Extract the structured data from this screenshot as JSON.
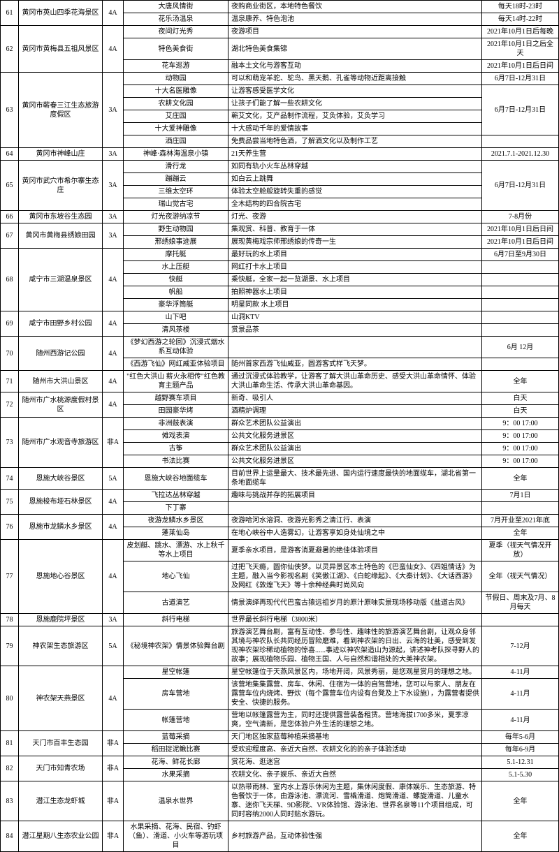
{
  "rows": [
    {
      "idx": "61",
      "name": "黄冈市英山四季花海景区",
      "grade": "4A",
      "items": [
        {
          "i": "大唐风情街",
          "d": "夜购商业街区，本地特色餐饮",
          "t": "每天18时-23时"
        },
        {
          "i": "花乐汤温泉",
          "d": "温泉康养、特色泡池",
          "t": "每天14时-22时"
        }
      ]
    },
    {
      "idx": "62",
      "name": "黄冈市黄梅县五祖风景区",
      "grade": "4A",
      "items": [
        {
          "i": "夜间灯光秀",
          "d": "夜游项目",
          "t": "2021年10月1日后每晚"
        },
        {
          "i": "特色美食街",
          "d": "湖北特色美食集锦",
          "t": "2021年10月1日之后全天"
        },
        {
          "i": "花车巡游",
          "d": "融本土文化与游客互动",
          "t": "2021年10月1日后日间"
        }
      ]
    },
    {
      "idx": "63",
      "name": "黄冈市蕲春三江生态旅游度假区",
      "grade": "3A",
      "items": [
        {
          "i": "动物园",
          "d": "可以和萌宠羊驼、鸵鸟、黑天鹅、孔雀等动物近距离接触",
          "t": "6月7日-12月31日"
        },
        {
          "i": "十大名医雕像",
          "d": "让游客感受医学文化",
          "t": "6月7日-12月31日",
          "merge": 4
        },
        {
          "i": "农耕文化园",
          "d": "让孩子们能了解一些农耕文化"
        },
        {
          "i": "艾庄园",
          "d": "蕲艾文化，艾产品制作流程，艾灸体验，艾灸学习"
        },
        {
          "i": "十大爱神雕像",
          "d": "十大感动千年的爱情故事"
        },
        {
          "i": "酒庄园",
          "d": "免费品尝当地特色酒，了解酒文化以及制作工艺",
          "t": ""
        }
      ]
    },
    {
      "idx": "64",
      "name": "黄冈市神峰山庄",
      "grade": "3A",
      "items": [
        {
          "i": "神峰·森林海温泉小镇",
          "d": "21天养生营",
          "t": "2021.7.1-2021.12.30"
        }
      ]
    },
    {
      "idx": "65",
      "name": "黄冈市武穴市希尔寨生态庄",
      "grade": "3A",
      "items": [
        {
          "i": "滑行龙",
          "d": "如同有轨小火车丛林穿越",
          "t": "6月7日-12月31日",
          "merge": 4
        },
        {
          "i": "蹦蹦云",
          "d": "如白云上跳舞"
        },
        {
          "i": "三维太空环",
          "d": "体验太空舱般旋转失重的感觉"
        },
        {
          "i": "瑞山觉古宅",
          "d": "全木结构的四合院古宅"
        }
      ]
    },
    {
      "idx": "66",
      "name": "黄冈市东坡谷生态园",
      "grade": "3A",
      "items": [
        {
          "i": "灯光夜游纳凉节",
          "d": "灯光、夜游",
          "t": "7-8月份"
        }
      ]
    },
    {
      "idx": "67",
      "name": "黄冈市黄梅县绣娘田园",
      "grade": "3A",
      "items": [
        {
          "i": "野生动物园",
          "d": "集观赏、科普、教育于一体",
          "t": "2021年10月1日后日间"
        },
        {
          "i": "邢绣娘事迹展",
          "d": "展现黄梅戏宗师邢绣娘的传奇一生",
          "t": "2021年10月1日后日间"
        }
      ]
    },
    {
      "idx": "68",
      "name": "咸宁市三湖温泉景区",
      "grade": "4A",
      "items": [
        {
          "i": "摩托艇",
          "d": "最好玩的水上项目",
          "t": "6月7日至9月30日"
        },
        {
          "i": "水上压艇",
          "d": "网红打卡水上项目",
          "t": ""
        },
        {
          "i": "快艇",
          "d": "乘快艇，全家一起一览湖景、水上项目",
          "t": ""
        },
        {
          "i": "帆船",
          "d": "拍照神器水上项目",
          "t": ""
        },
        {
          "i": "豪华浮筒艇",
          "d": "明星同款 水上项目",
          "t": ""
        }
      ]
    },
    {
      "idx": "69",
      "name": "咸宁市田野乡村公园",
      "grade": "4A",
      "items": [
        {
          "i": "山下吧",
          "d": "山洞KTV",
          "t": ""
        },
        {
          "i": "清风茶楼",
          "d": "赏景品茶",
          "t": ""
        }
      ]
    },
    {
      "idx": "70",
      "name": "随州西游记公园",
      "grade": "4A",
      "items": [
        {
          "i": "《梦幻西游之轮回》沉浸式烟水系互动体验",
          "d": "",
          "t": "6月 12月"
        },
        {
          "i": "《西游飞仙》网红威亚体验项目",
          "d": "随州首家西游飞仙威亚，圆游客式样飞天梦。",
          "t": ""
        }
      ]
    },
    {
      "idx": "71",
      "name": "随州市大洪山景区",
      "grade": "4A",
      "items": [
        {
          "i": "\"红色大洪山 薪火永相传\"红色教育主题产品",
          "d": "通过沉浸式体验教学，让游客了解大洪山革命历史、感受大洪山革命情怀、体验大洪山革命生活、传承大洪山革命基因。",
          "t": "全年"
        }
      ]
    },
    {
      "idx": "72",
      "name": "随州市广水桃源度假村景区",
      "grade": "4A",
      "items": [
        {
          "i": "越野赛车项目",
          "d": "新奇、吸引人",
          "t": "白天"
        },
        {
          "i": "田园豪华烤",
          "d": "酒精炉调理",
          "t": "白天"
        }
      ]
    },
    {
      "idx": "73",
      "name": "随州市广水观音寺旅游区",
      "grade": "非A",
      "items": [
        {
          "i": "非洲鼓表演",
          "d": "群众艺术团队公益演出",
          "t": "9：00 17:00"
        },
        {
          "i": "傩戏表演",
          "d": "公共文化服务进景区",
          "t": "9：00 17:00"
        },
        {
          "i": "古筝",
          "d": "群众艺术团队公益演出",
          "t": "9：00 17:00"
        },
        {
          "i": "书法比赛",
          "d": "公共文化服务进景区",
          "t": "9：00 17:00"
        }
      ]
    },
    {
      "idx": "74",
      "name": "恩施大峡谷景区",
      "grade": "5A",
      "items": [
        {
          "i": "恩施大峡谷地面缆车",
          "d": "目前世界上运量最大、技术最先进、国内运行速度最快的地面缆车，湖北省第一条地面缆车",
          "t": "全年"
        }
      ]
    },
    {
      "idx": "75",
      "name": "恩施梭布垭石林景区",
      "grade": "4A",
      "items": [
        {
          "i": "飞拉达丛林穿越",
          "d": "趣味与挑战并存的拓展项目",
          "t": "7月1日"
        },
        {
          "i": "下丁寨",
          "d": "",
          "t": ""
        }
      ]
    },
    {
      "idx": "76",
      "name": "恩施市龙鳞水乡景区",
      "grade": "4A",
      "items": [
        {
          "i": "夜游龙鳞水乡景区",
          "d": "夜游哈河水溶洞、夜游光影秀之清江行、表演",
          "t": "7月开业至2021年底"
        },
        {
          "i": "蓬莱仙岛",
          "d": "在地心峡谷中人造雾幻，让游客享如身处仙境之中",
          "t": "全年"
        }
      ]
    },
    {
      "idx": "77",
      "name": "恩施地心谷景区",
      "grade": "4A",
      "items": [
        {
          "i": "皮划艇、跳水、漂游、水上秋千等水上项目",
          "d": "夏季亲水项目，是游客消夏避暑的绝佳体验项目",
          "t": "夏季（视天气情况开放）"
        },
        {
          "i": "地心飞仙",
          "d": "过把飞天瘾，圆你仙侠梦。以灵异景区本土特色的《巴蛮仙女》、《四姐情话》为主题，融入当今影视名剧《笑傲江湖》、《白蛇缘起》、《大秦计划》、《大话西游》及网红《敦煌飞天》等十余种经典时尚风向",
          "t": "全年（视天气情况）"
        },
        {
          "i": "古道演艺",
          "d": "情景演绎再现代代巴蛮古猿远祖岁月的原汁原味实景现场移动版《盐道古风》",
          "t": "节假日、周末及7月、8月每天"
        }
      ]
    },
    {
      "idx": "78",
      "name": "恩施鹿院坪景区",
      "grade": "3A",
      "items": [
        {
          "i": "斜行电梯",
          "d": "世界最长斜行电梯（3800米）",
          "t": ""
        }
      ]
    },
    {
      "idx": "79",
      "name": "神农架生态旅游区",
      "grade": "5A",
      "items": [
        {
          "i": "《秘境神农架》情景体验舞台剧",
          "d": "旅游演艺舞台剧，富有互动性、参与性、趣味性的旅游演艺舞台剧，让观众身邻其境与神农队长共同经历冒险磨难，看到神农架的日出、云海的壮美，感受到发现神农架珍稀动植物的惊喜......事迹以神农架造山为源起，讲述神考队探寻野人的故事；展现植物乐园、植物王国、人与自然和谐相处的大美神农架。",
          "t": "7-12月"
        }
      ]
    },
    {
      "idx": "80",
      "name": "神农架天燕景区",
      "grade": "4A",
      "items": [
        {
          "i": "星空帐篷",
          "d": "星空帐篷位于天燕风景区内，场地开阔，风景秀丽，是您观星赏月的理想之地。",
          "t": "4-11月"
        },
        {
          "i": "房车营地",
          "d": "该营地集集露营、房车、休闲、住宿为一体的自驾营地，您可以与家人、朋友在露营车位内烧烤、野炊（每个露营车位内设有台凳及上下水设施），为露营者提供安全、快捷的服务。",
          "t": "4-11月"
        },
        {
          "i": "帐篷营地",
          "d": "营地以帐篷露营为主，同时还提供露营装备租赁。营地海拔1700多米，夏季凉爽，空气清新，是您体验户外生活的理想之地。",
          "t": "4-11月"
        }
      ]
    },
    {
      "idx": "81",
      "name": "天门市百丰生态园",
      "grade": "非A",
      "items": [
        {
          "i": "蓝莓采摘",
          "d": "天门地区独家蓝莓种植采摘基地",
          "t": "每年5-6月"
        },
        {
          "i": "稻田捉泥鳅比赛",
          "d": "受欢迎程度高、亲近大自然、农耕文化的的亲子体验活动",
          "t": "每年6-9月"
        }
      ]
    },
    {
      "idx": "82",
      "name": "天门市知青农场",
      "grade": "非A",
      "items": [
        {
          "i": "花海、鲜花长廊",
          "d": "赏花海、逛迷宫",
          "t": "5.1-12.31"
        },
        {
          "i": "水果采摘",
          "d": "农耕文化、亲子娱乐、亲近大自然",
          "t": "5.1-5.30"
        }
      ]
    },
    {
      "idx": "83",
      "name": "潜江生态龙虾城",
      "grade": "非A",
      "items": [
        {
          "i": "温泉水世界",
          "d": "以热带雨林、室内水上游乐休闲为主题，集休闲度假、康体娱乐、生态旅游、特色餐饮于一体，由游泳池、漂流河、雪橇滑道、炮筒滑道、螺旋滑道、儿童水寨、迷你飞天梯、9D影院、VR体验馆、游泳池、世界名泉等11个项目组成，可同时容纳2000人同时贴水游玩。",
          "t": "全年"
        }
      ]
    },
    {
      "idx": "84",
      "name": "潜江星期八生态农业公园",
      "grade": "非A",
      "items": [
        {
          "i": "水果采摘、花海、民宿、钓虾（鱼）、滑道、小火车等游玩项目",
          "d": "乡村旅游产品，互动体验性强",
          "t": "全年"
        }
      ]
    }
  ]
}
